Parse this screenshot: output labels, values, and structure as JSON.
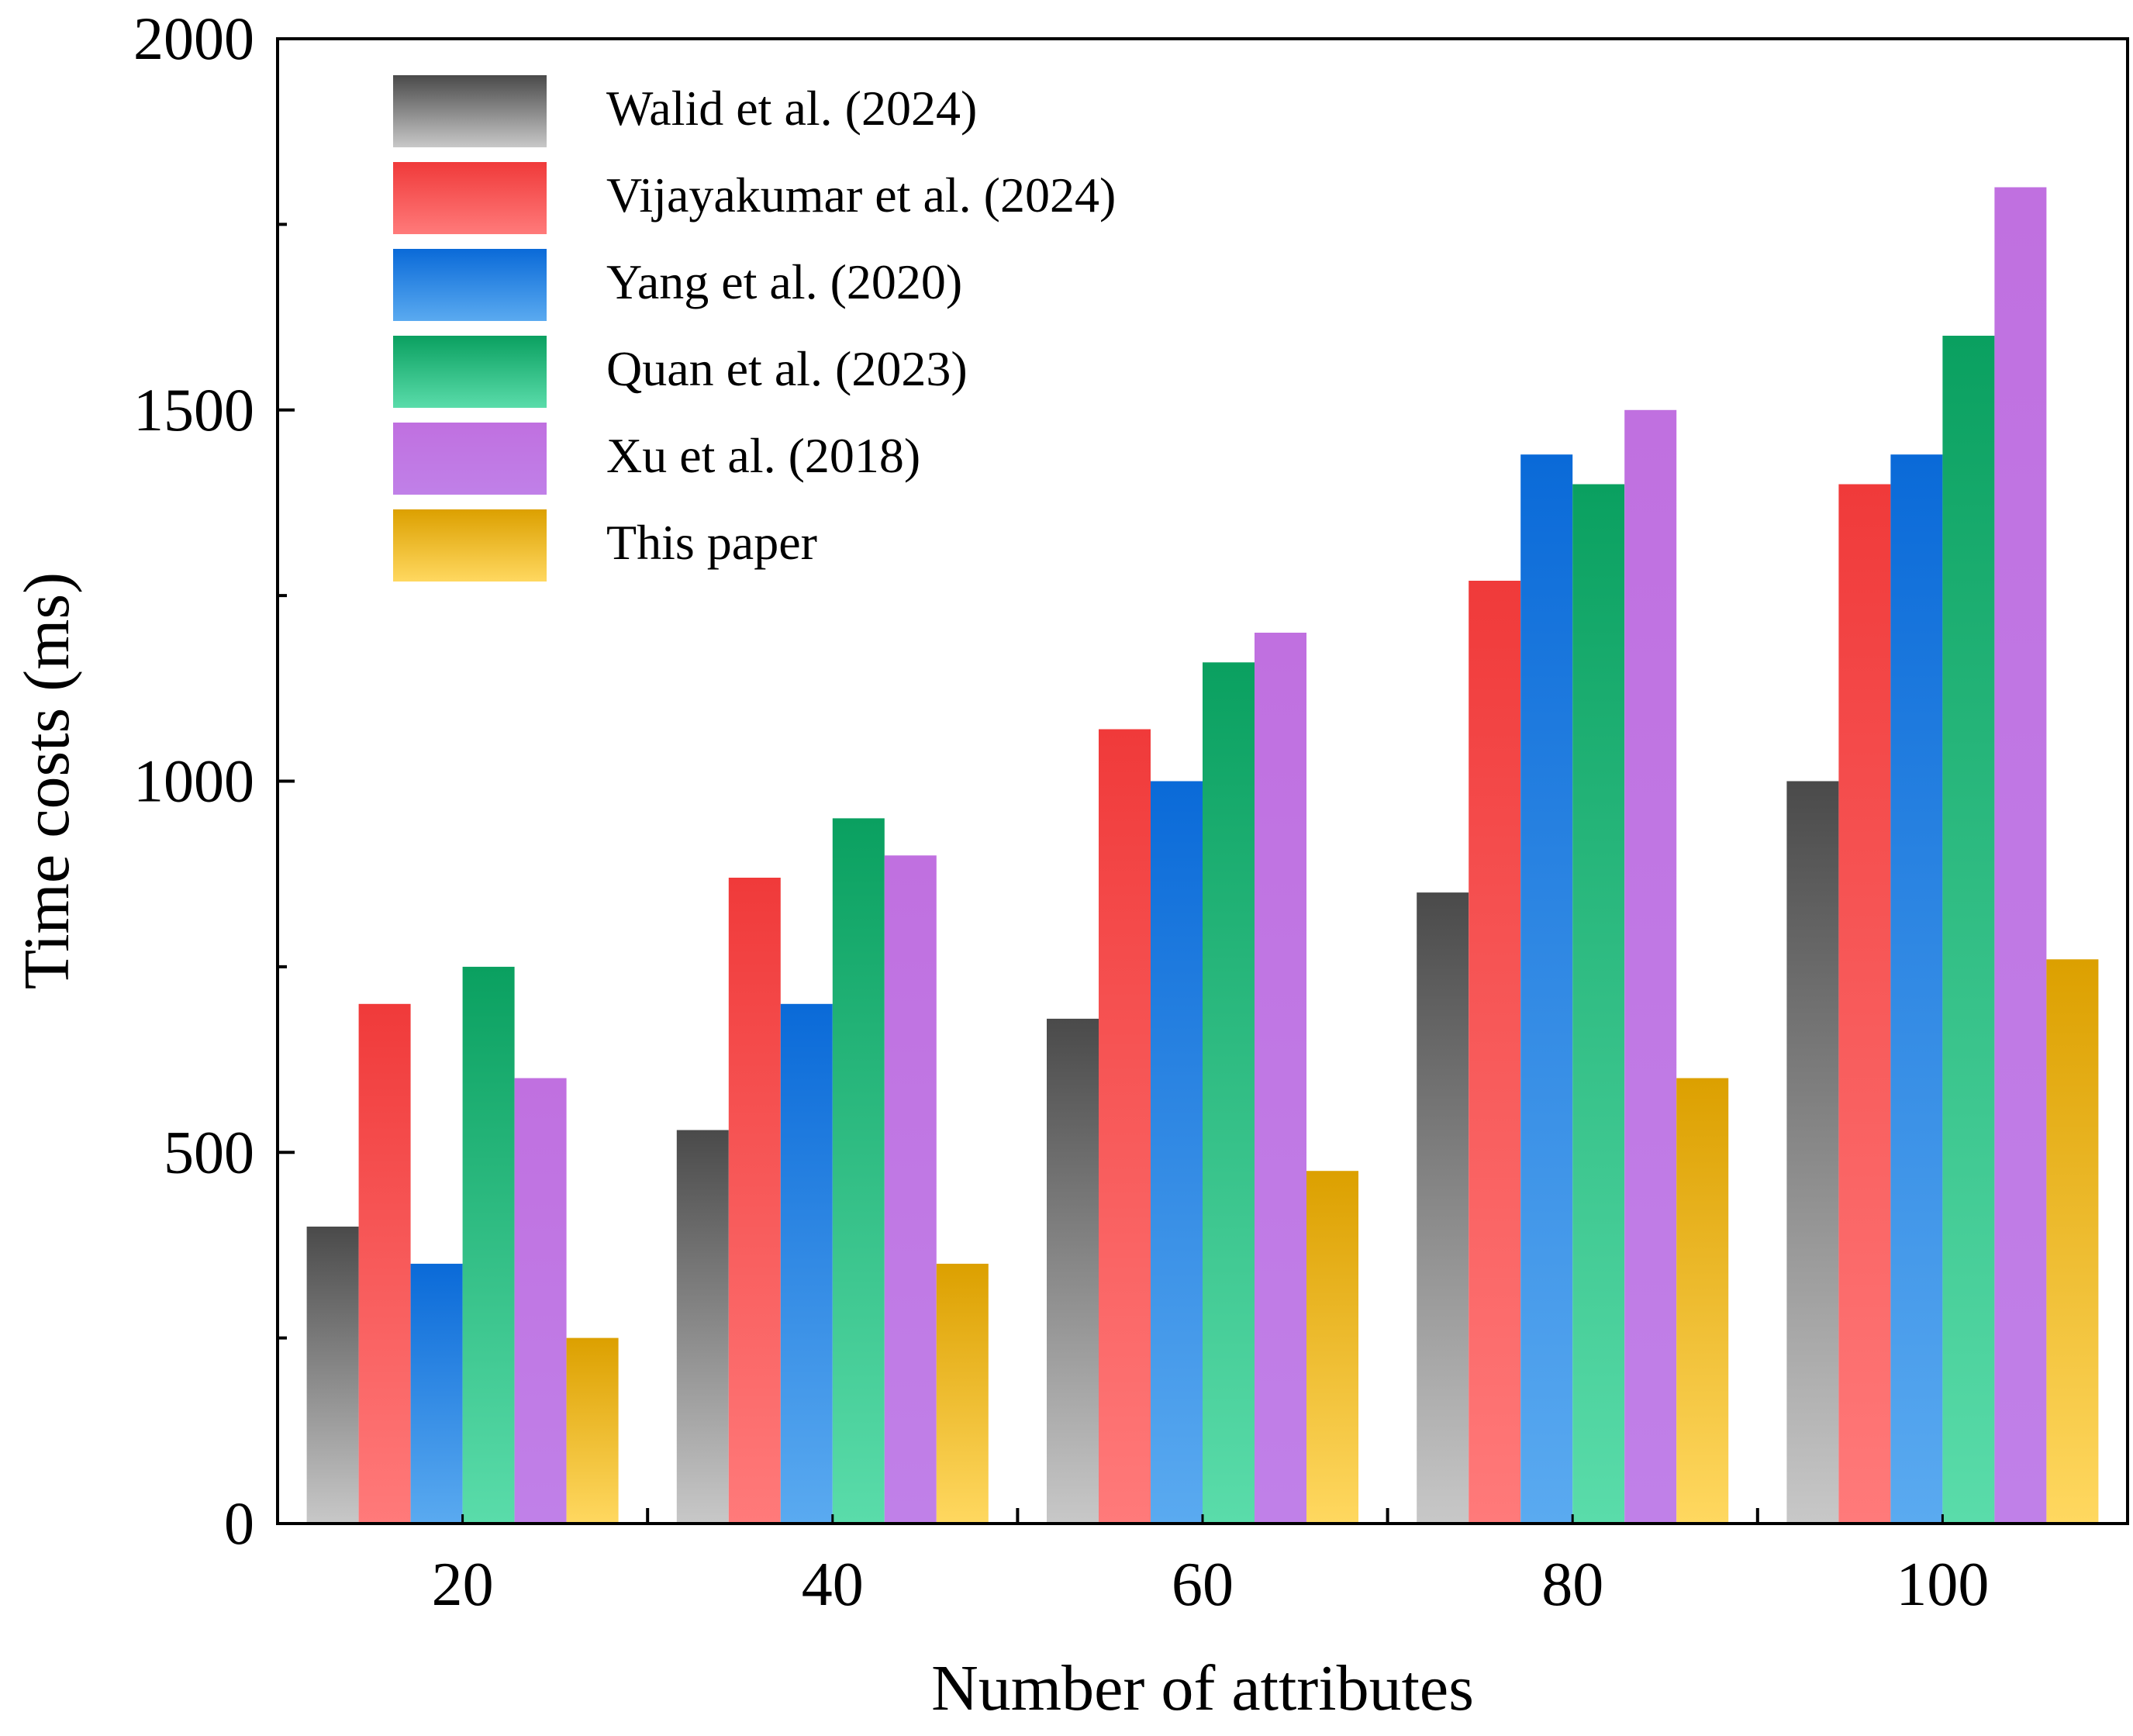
{
  "chart_data": {
    "type": "bar",
    "title": "",
    "xlabel": "Number of attributes",
    "ylabel": "Time costs (ms)",
    "categories": [
      "20",
      "40",
      "60",
      "80",
      "100"
    ],
    "ylim": [
      0,
      2000
    ],
    "yticks": [
      "0",
      "500",
      "1000",
      "1500",
      "2000"
    ],
    "grid": false,
    "legend_position": "top-left",
    "series": [
      {
        "name": "Walid et al. (2024)",
        "values": [
          400,
          530,
          680,
          850,
          1000
        ],
        "color_top": "#4a4a4a",
        "color_bottom": "#c8c8c8"
      },
      {
        "name": "Vijayakumar  et al. (2024)",
        "values": [
          700,
          870,
          1070,
          1270,
          1400
        ],
        "color_top": "#f03a3a",
        "color_bottom": "#ff7a7a"
      },
      {
        "name": "Yang  et al. (2020)",
        "values": [
          350,
          700,
          1000,
          1440,
          1440
        ],
        "color_top": "#0a6ad8",
        "color_bottom": "#5aaaf0"
      },
      {
        "name": "Quan et al. (2023)",
        "values": [
          750,
          950,
          1160,
          1400,
          1600
        ],
        "color_top": "#0aa060",
        "color_bottom": "#5adcaa"
      },
      {
        "name": "Xu et al. (2018)",
        "values": [
          600,
          900,
          1200,
          1500,
          1800
        ],
        "color_top": "#c070e0",
        "color_bottom": "#c080e8"
      },
      {
        "name": "This paper",
        "values": [
          250,
          350,
          475,
          600,
          760
        ],
        "color_top": "#dca000",
        "color_bottom": "#ffd860"
      }
    ]
  }
}
